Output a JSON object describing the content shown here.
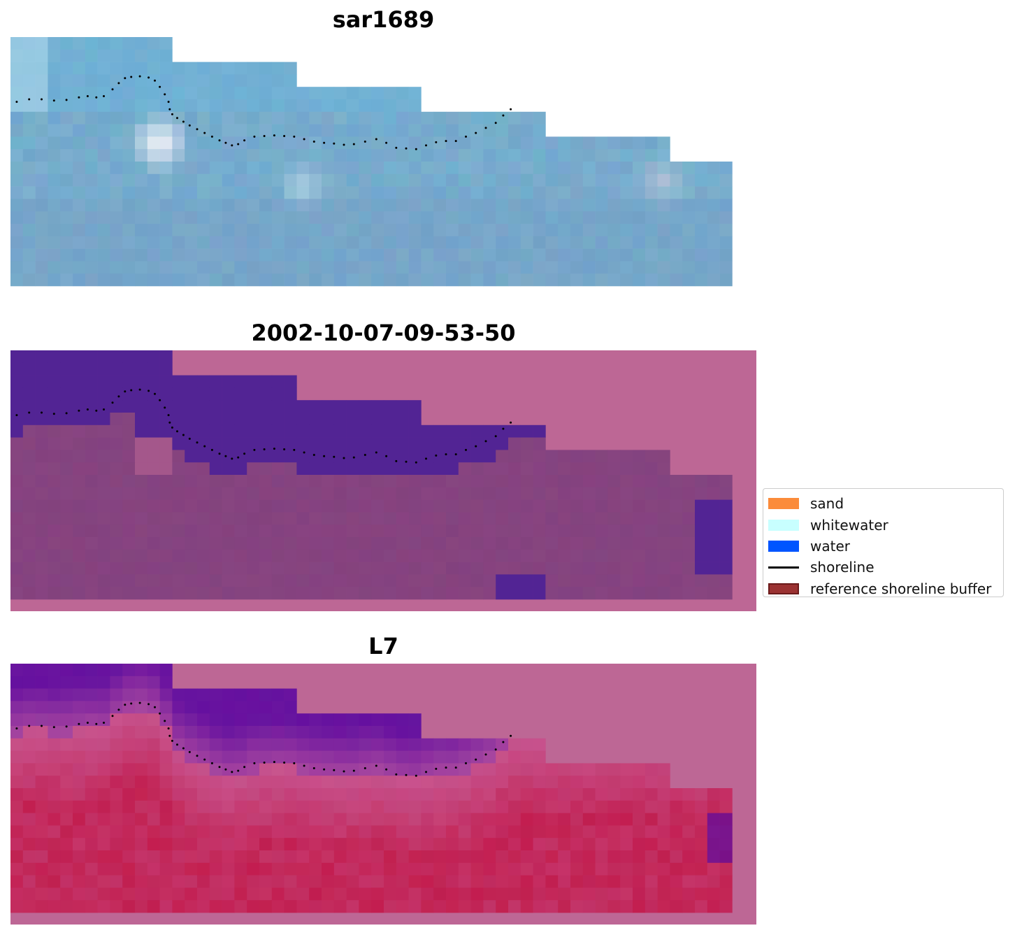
{
  "panels": [
    {
      "title": "sar1689",
      "kind": "rgb"
    },
    {
      "title": "2002-10-07-09-53-50",
      "kind": "classified"
    },
    {
      "title": "L7",
      "kind": "index"
    }
  ],
  "legend": {
    "items": [
      {
        "label": "sand",
        "color": "#fb8b3a",
        "type": "patch"
      },
      {
        "label": "whitewater",
        "color": "#c8ffff",
        "type": "patch"
      },
      {
        "label": "water",
        "color": "#0055ff",
        "type": "patch"
      },
      {
        "label": "shoreline",
        "color": "#000000",
        "type": "line"
      },
      {
        "label": "reference shoreline buffer",
        "color": "#9b3232",
        "type": "patch",
        "edge": "#6b1a1a"
      }
    ]
  },
  "colors": {
    "nodata": "#bd6795",
    "classified_water": "#522494",
    "classified_land": "#7e3f7b",
    "rgb_base": "#6ea4c6",
    "index_low": "#5a0aa0",
    "index_high": "#c0103c",
    "shoreline": "#000000"
  },
  "shoreline_points": [
    [
      0.5,
      5.2
    ],
    [
      1.5,
      5.0
    ],
    [
      2.5,
      5.0
    ],
    [
      3.5,
      5.1
    ],
    [
      4.5,
      5.05
    ],
    [
      5.5,
      4.85
    ],
    [
      6.2,
      4.75
    ],
    [
      6.9,
      4.85
    ],
    [
      7.5,
      4.75
    ],
    [
      8.2,
      4.2
    ],
    [
      8.7,
      3.7
    ],
    [
      9.2,
      3.3
    ],
    [
      9.7,
      3.2
    ],
    [
      10.4,
      3.15
    ],
    [
      11.1,
      3.25
    ],
    [
      11.6,
      3.5
    ],
    [
      12.0,
      4.0
    ],
    [
      12.4,
      4.6
    ],
    [
      12.7,
      5.2
    ],
    [
      12.8,
      5.8
    ],
    [
      13.0,
      6.2
    ],
    [
      13.4,
      6.5
    ],
    [
      13.9,
      6.8
    ],
    [
      14.4,
      7.1
    ],
    [
      15.0,
      7.4
    ],
    [
      15.6,
      7.7
    ],
    [
      16.2,
      8.0
    ],
    [
      16.8,
      8.3
    ],
    [
      17.3,
      8.5
    ],
    [
      17.8,
      8.7
    ],
    [
      18.3,
      8.6
    ],
    [
      18.8,
      8.3
    ],
    [
      19.6,
      8.0
    ],
    [
      20.4,
      7.95
    ],
    [
      21.2,
      7.9
    ],
    [
      22.0,
      7.95
    ],
    [
      22.8,
      8.0
    ],
    [
      23.6,
      8.2
    ],
    [
      24.4,
      8.4
    ],
    [
      25.2,
      8.5
    ],
    [
      26.0,
      8.55
    ],
    [
      26.8,
      8.65
    ],
    [
      27.6,
      8.6
    ],
    [
      28.5,
      8.4
    ],
    [
      29.4,
      8.2
    ],
    [
      30.2,
      8.5
    ],
    [
      31.0,
      8.9
    ],
    [
      31.8,
      8.95
    ],
    [
      32.6,
      9.0
    ],
    [
      33.4,
      8.7
    ],
    [
      34.2,
      8.45
    ],
    [
      35.0,
      8.35
    ],
    [
      35.8,
      8.35
    ],
    [
      36.6,
      8.0
    ],
    [
      37.4,
      7.7
    ],
    [
      38.2,
      7.3
    ],
    [
      39.0,
      6.9
    ],
    [
      39.6,
      6.3
    ],
    [
      40.2,
      5.8
    ]
  ]
}
